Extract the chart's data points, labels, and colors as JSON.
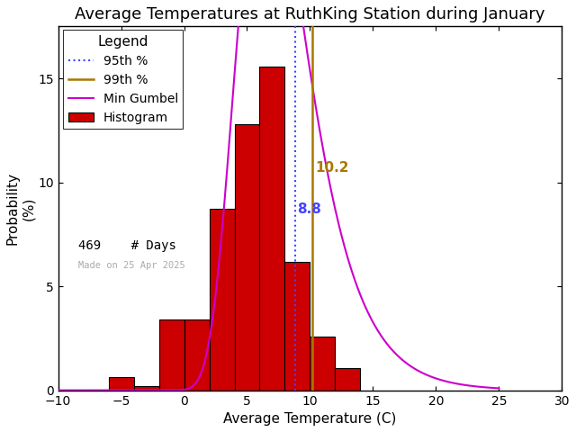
{
  "title": "Average Temperatures at RuthKing Station during January",
  "xlabel": "Average Temperature (C)",
  "ylabel": "Probability\n(%)",
  "xlim": [
    -10,
    30
  ],
  "ylim": [
    0,
    17.5
  ],
  "xticks": [
    -10,
    -5,
    0,
    5,
    10,
    15,
    20,
    25,
    30
  ],
  "yticks": [
    0,
    5,
    10,
    15
  ],
  "bar_left_edges": [
    -8,
    -6,
    -4,
    -2,
    0,
    2,
    4,
    6,
    8,
    10,
    12
  ],
  "bar_heights": [
    0.0,
    0.64,
    0.21,
    3.41,
    3.41,
    8.74,
    12.79,
    15.56,
    6.18,
    2.56,
    1.07
  ],
  "bar_width": 2.0,
  "bar_color": "#cc0000",
  "bar_edgecolor": "#000000",
  "percentile_95": 8.8,
  "percentile_99": 10.2,
  "percentile_95_color": "#4444ff",
  "percentile_99_color": "#aa7700",
  "gumbel_mu": 6.5,
  "gumbel_beta": 2.8,
  "gumbel_color": "#cc00cc",
  "n_days": 469,
  "watermark": "Made on 25 Apr 2025",
  "watermark_color": "#aaaaaa",
  "background_color": "#ffffff",
  "title_fontsize": 13,
  "axis_fontsize": 11,
  "legend_fontsize": 10,
  "tick_labelsize": 10
}
